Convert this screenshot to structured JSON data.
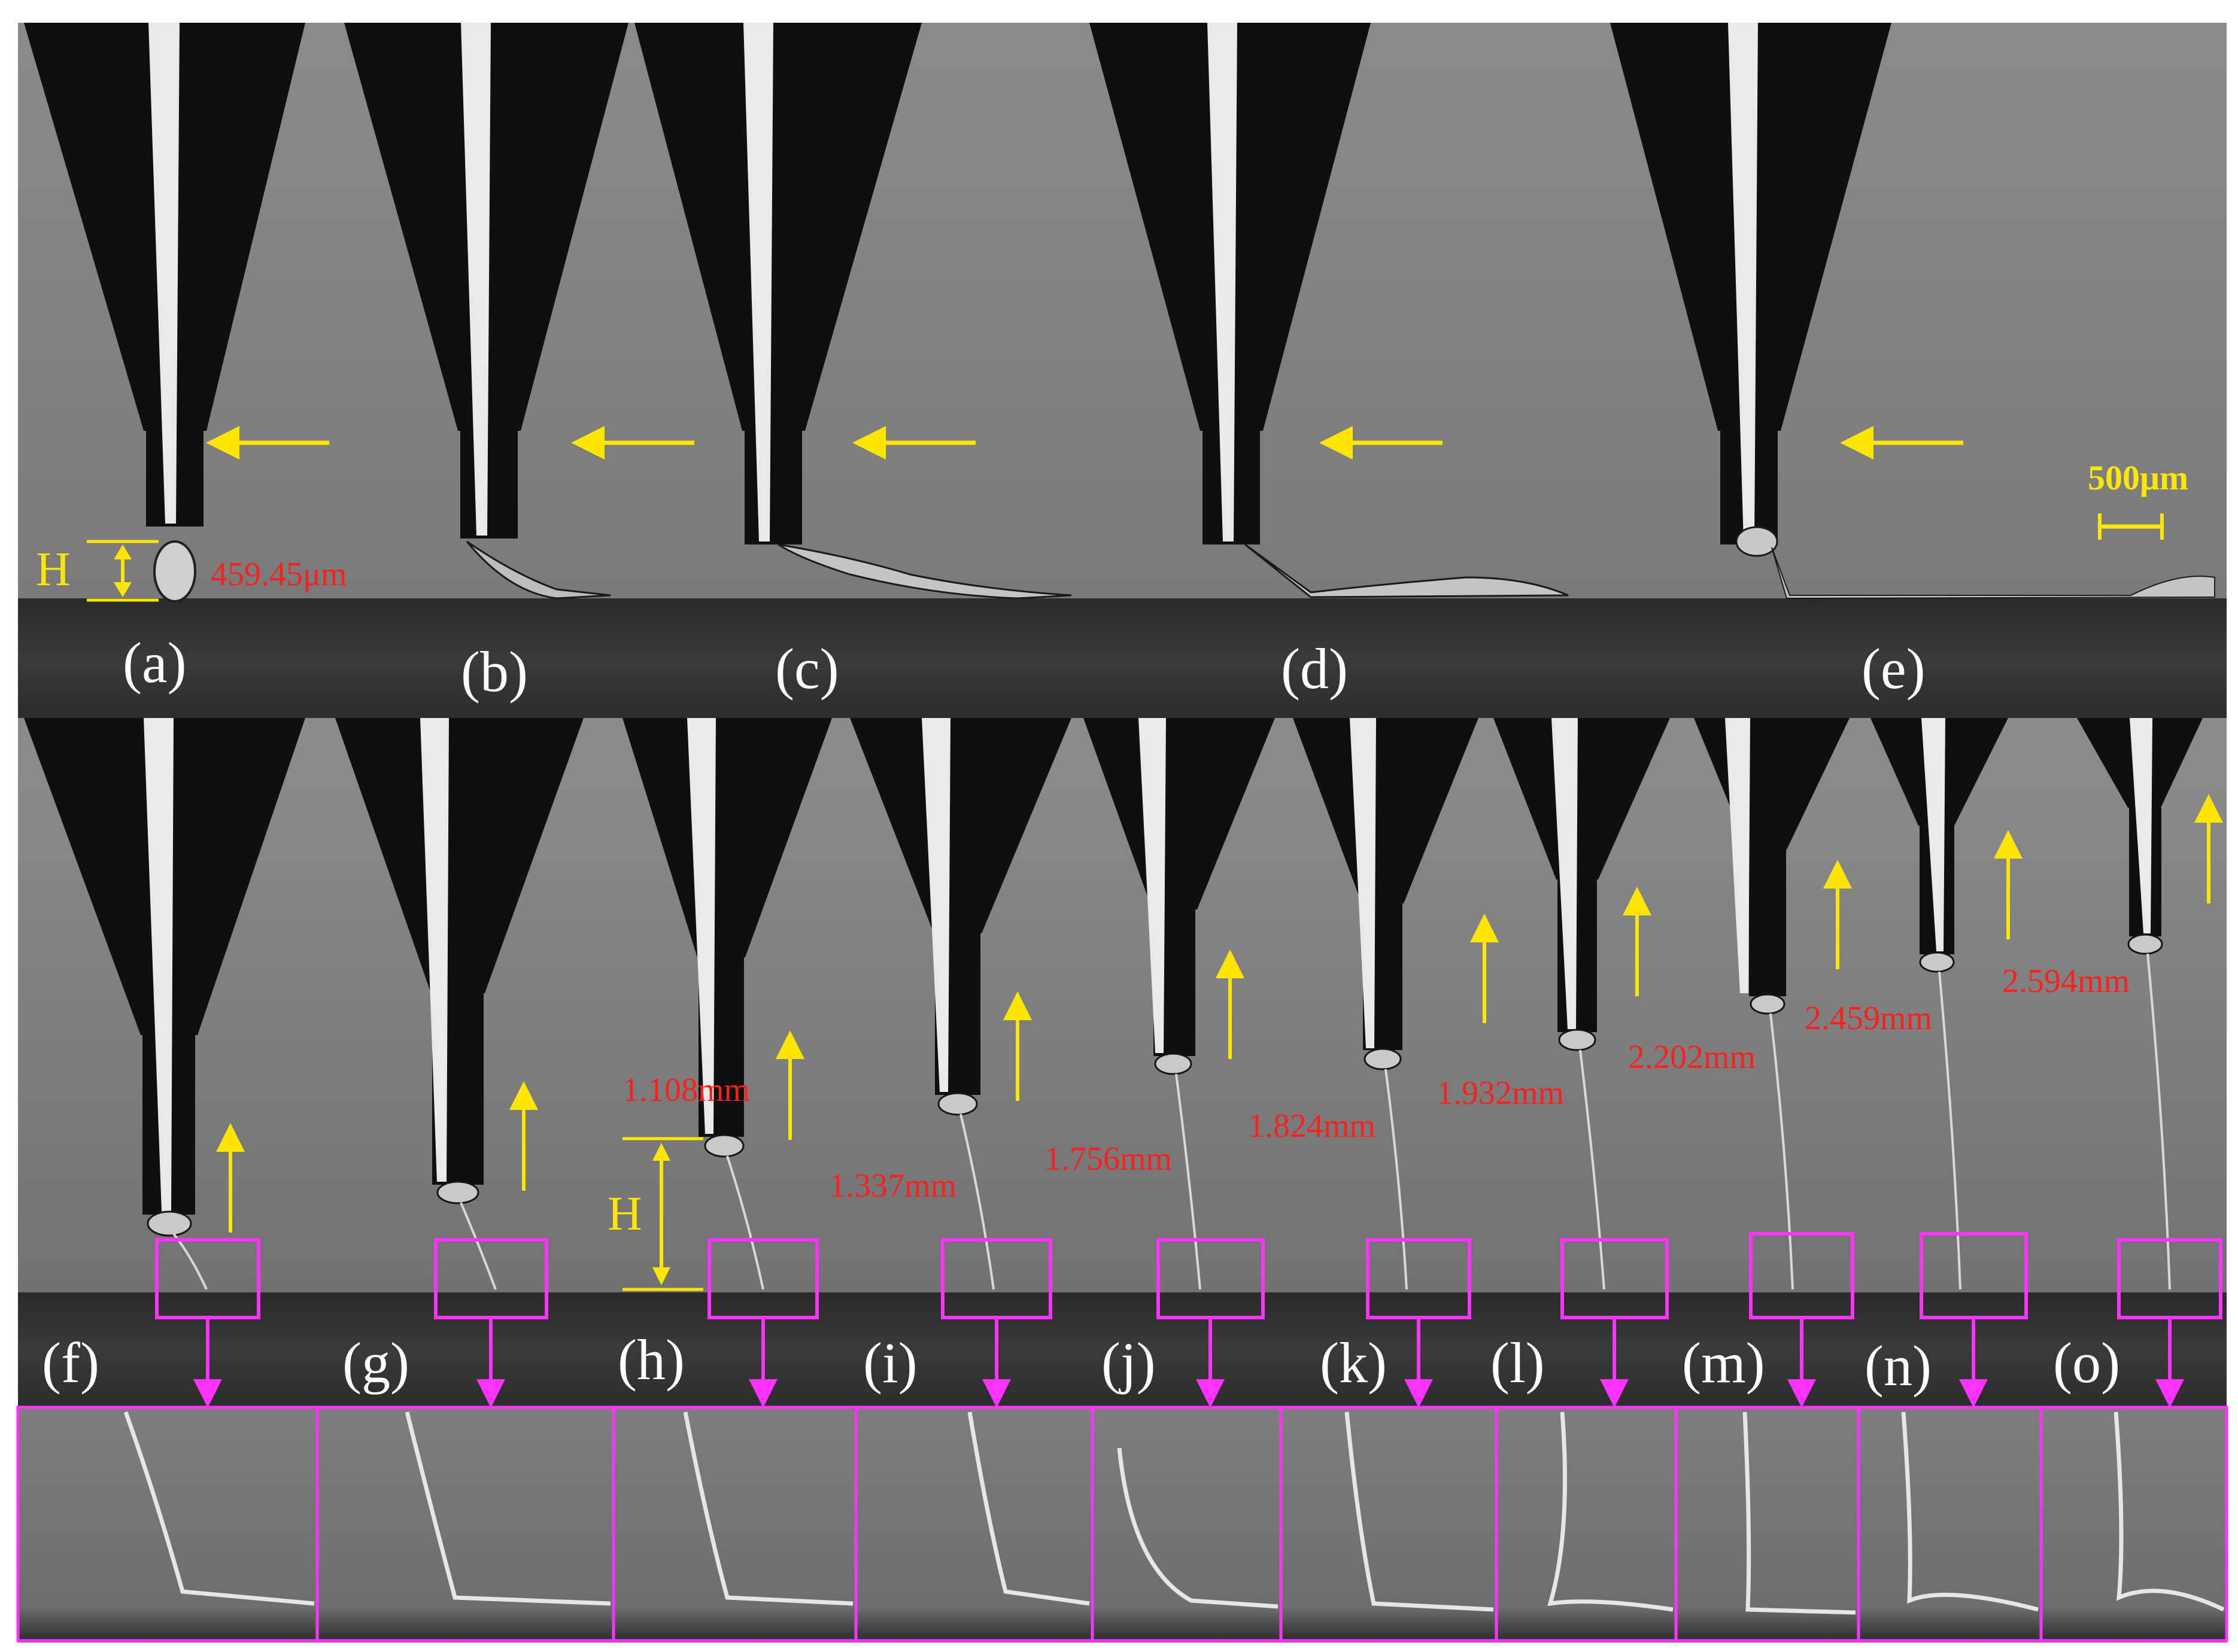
{
  "top_row": {
    "panels": [
      {
        "label": "(a)",
        "measurement": "459.45μm",
        "height_label": "H"
      },
      {
        "label": "(b)"
      },
      {
        "label": "(c)"
      },
      {
        "label": "(d)"
      },
      {
        "label": "(e)"
      }
    ],
    "scale_bar": "500μm"
  },
  "bottom_row": {
    "height_label": "H",
    "panels": [
      {
        "label": "(f)",
        "measurement": ""
      },
      {
        "label": "(g)",
        "measurement": ""
      },
      {
        "label": "(h)",
        "measurement": "1.108mm"
      },
      {
        "label": "(i)",
        "measurement": "1.337mm"
      },
      {
        "label": "(j)",
        "measurement": "1.756mm"
      },
      {
        "label": "(k)",
        "measurement": "1.824mm"
      },
      {
        "label": "(l)",
        "measurement": "1.932mm"
      },
      {
        "label": "(m)",
        "measurement": "2.202mm"
      },
      {
        "label": "(n)",
        "measurement": "2.459mm"
      },
      {
        "label": "(o)",
        "measurement": "2.594mm"
      }
    ]
  },
  "colors": {
    "arrow": "#ffe600",
    "measurement_text": "#ff2020",
    "zoom_box": "#ff33ff",
    "panel_label": "#ffffff"
  }
}
